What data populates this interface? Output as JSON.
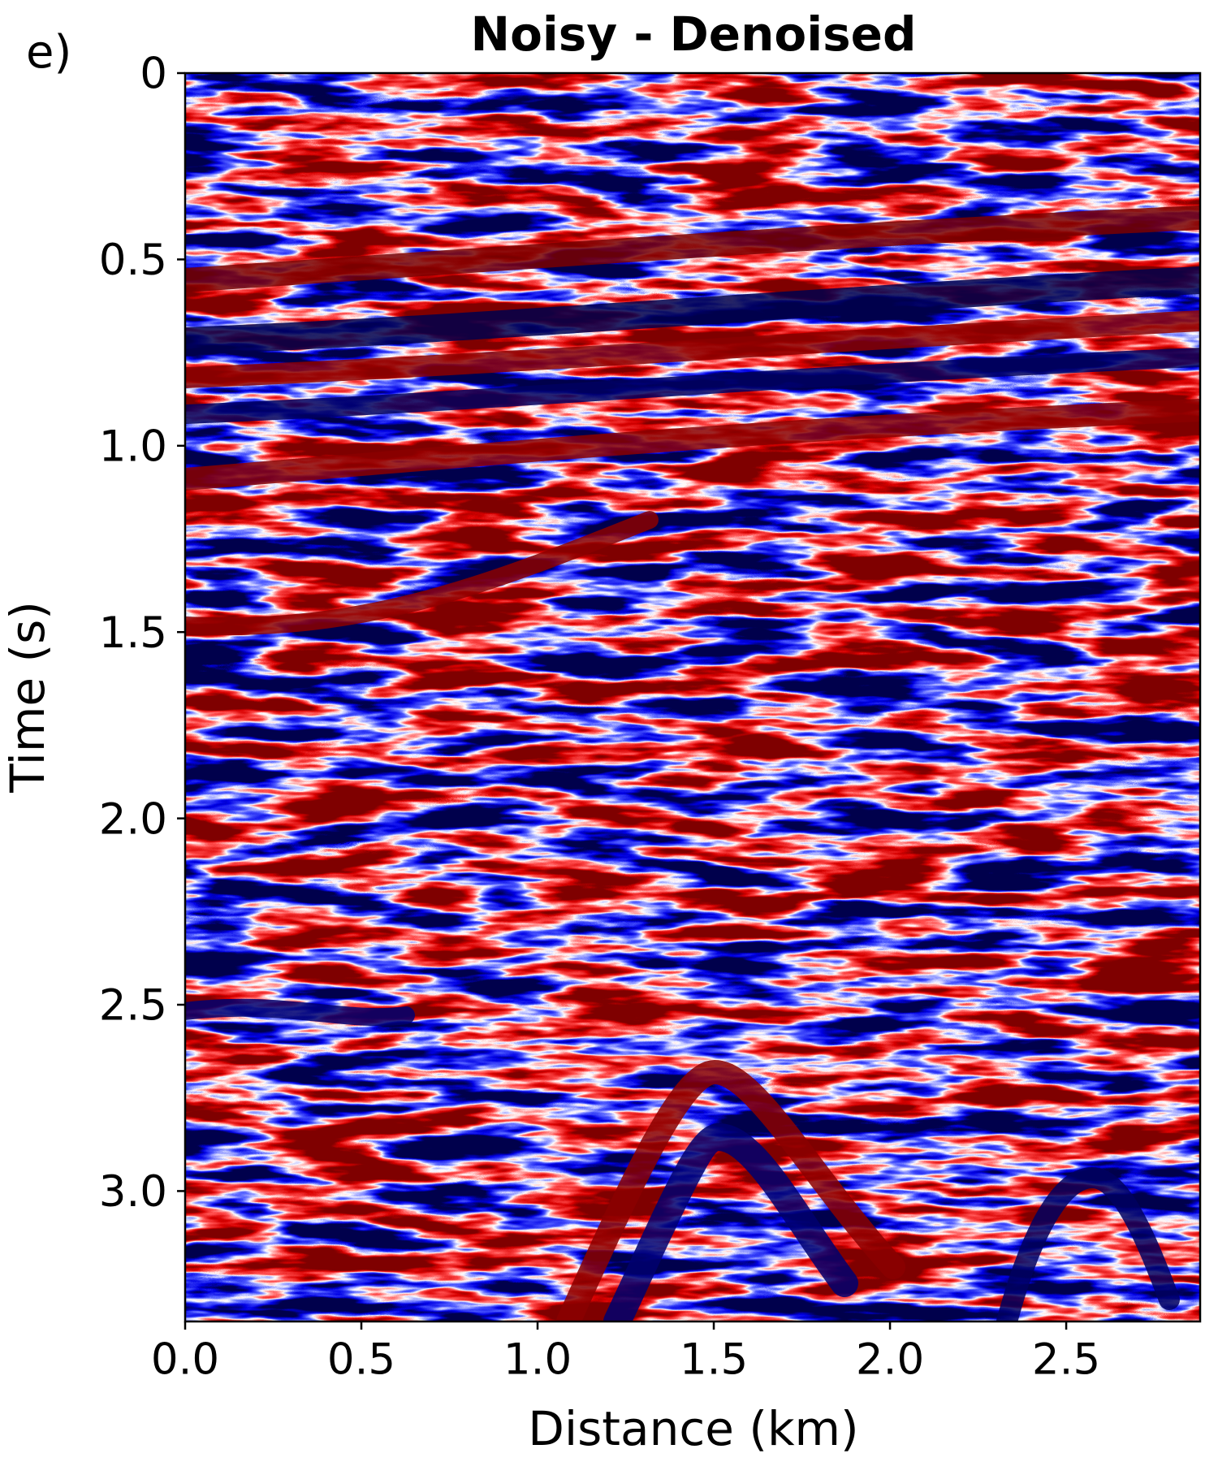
{
  "panel_label": "e)",
  "chart_data": {
    "type": "image",
    "title": "Noisy - Denoised",
    "x_label": "Distance (km)",
    "y_label": "Time (s)",
    "xlim": [
      0,
      2.88
    ],
    "ylim": [
      0,
      3.35
    ],
    "y_inverted": true,
    "xticks": [
      {
        "value": 0,
        "label": "0.0"
      },
      0.5,
      {
        "value": 1,
        "label": "1.0"
      },
      1.5,
      {
        "value": 2,
        "label": "2.0"
      },
      2.5
    ],
    "yticks": [
      0,
      0.5,
      {
        "value": 1,
        "label": "1.0"
      },
      1.5,
      {
        "value": 2,
        "label": "2.0"
      },
      2.5,
      {
        "value": 3,
        "label": "3.0"
      }
    ],
    "colormap": "seismic"
  }
}
